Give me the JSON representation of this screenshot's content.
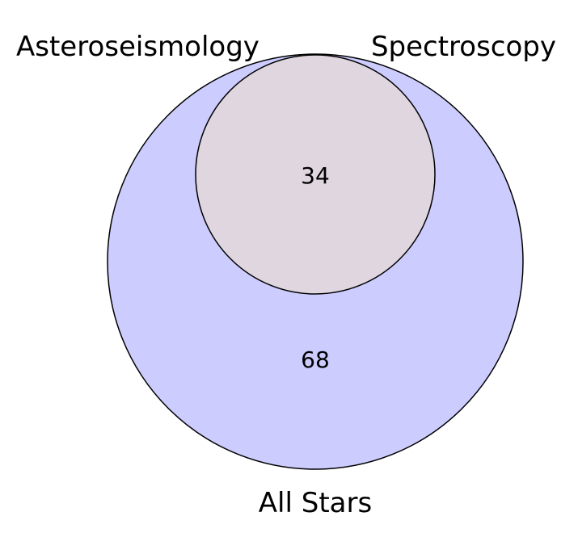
{
  "labels": {
    "asteroseismology": "Asteroseismology",
    "spectroscopy": "Spectroscopy",
    "all_stars": "All Stars"
  },
  "counts": {
    "overlap": "34",
    "all_stars_only": "68"
  },
  "colors": {
    "all_stars_fill": "#ccccff",
    "overlap_fill": "#dfd6df",
    "outline": "#000000"
  }
}
